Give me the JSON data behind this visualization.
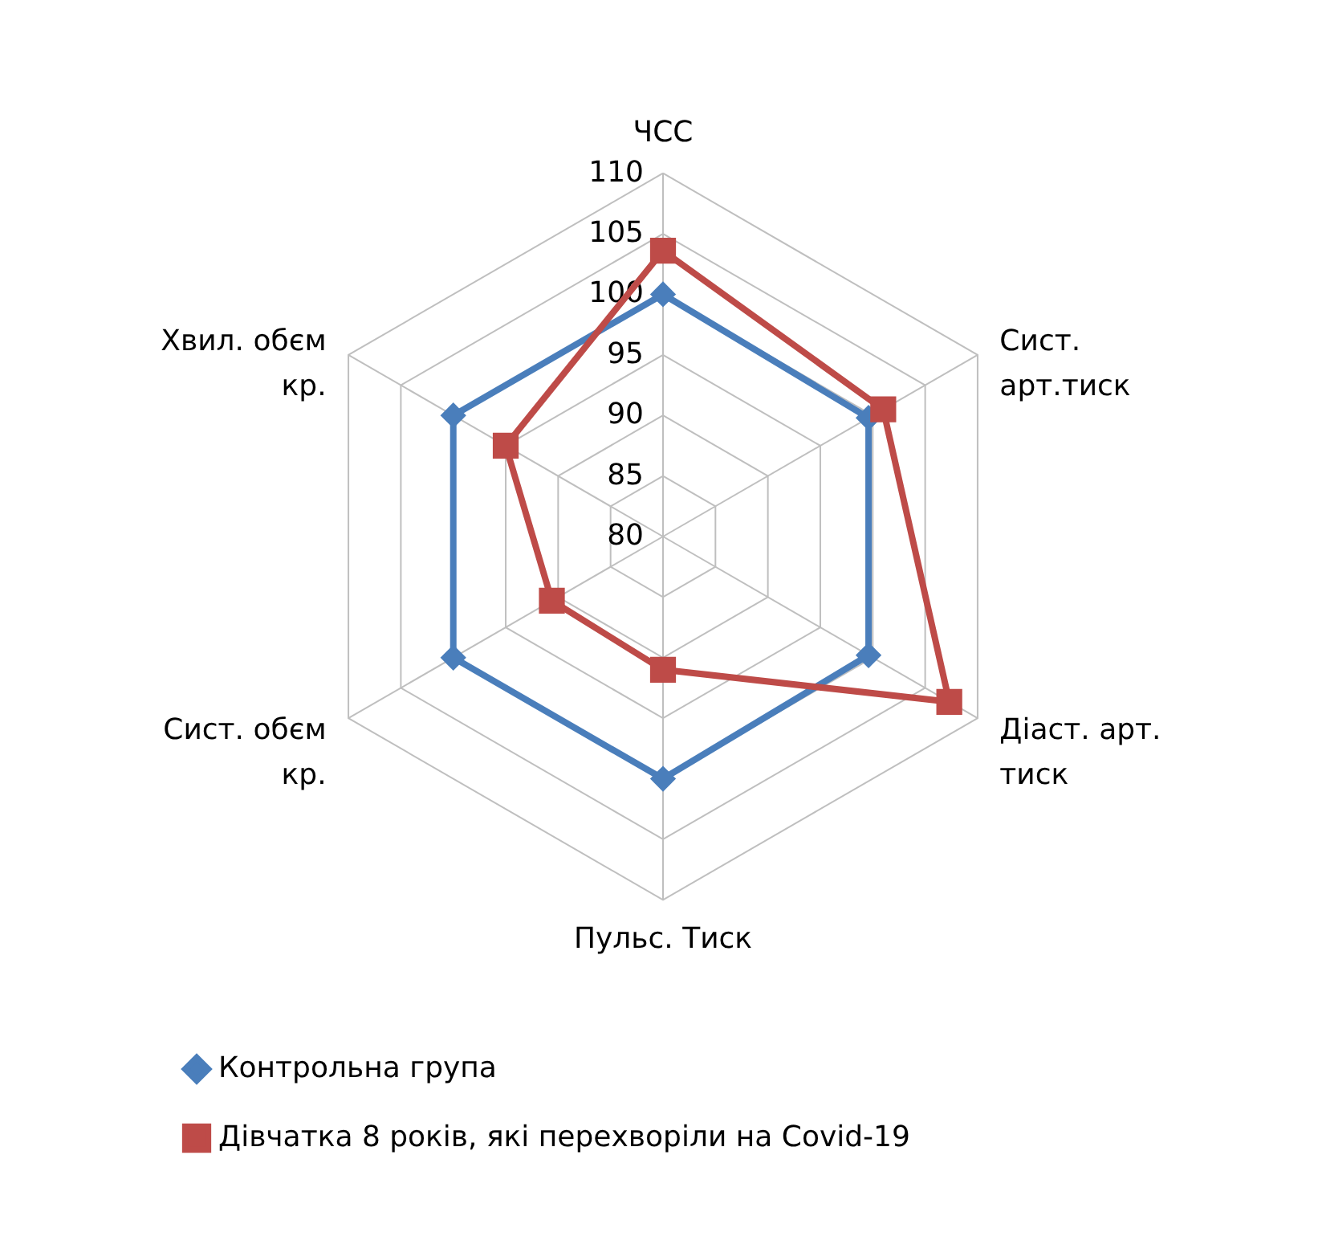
{
  "chart_data": {
    "type": "radar",
    "categories": [
      "ЧСС",
      "Сист. арт.тиск",
      "Діаст. арт. тиск",
      "Пульс. Тиск",
      "Сист. обєм кр.",
      "Хвил. обєм кр."
    ],
    "ylim": [
      80,
      110
    ],
    "yticks": [
      80,
      85,
      90,
      95,
      100,
      105,
      110
    ],
    "grid": true,
    "legend": "bottom",
    "series": [
      {
        "name": "Контрольна група",
        "color": "#4a7ebb",
        "marker": "diamond",
        "values": [
          100,
          99.6,
          99.6,
          100,
          100,
          100
        ]
      },
      {
        "name": "Дівчатка 8 років, які перехворіли на Covid-19",
        "color": "#be4b48",
        "marker": "square",
        "values": [
          103.6,
          101,
          107.3,
          91,
          90.6,
          95
        ]
      }
    ]
  }
}
